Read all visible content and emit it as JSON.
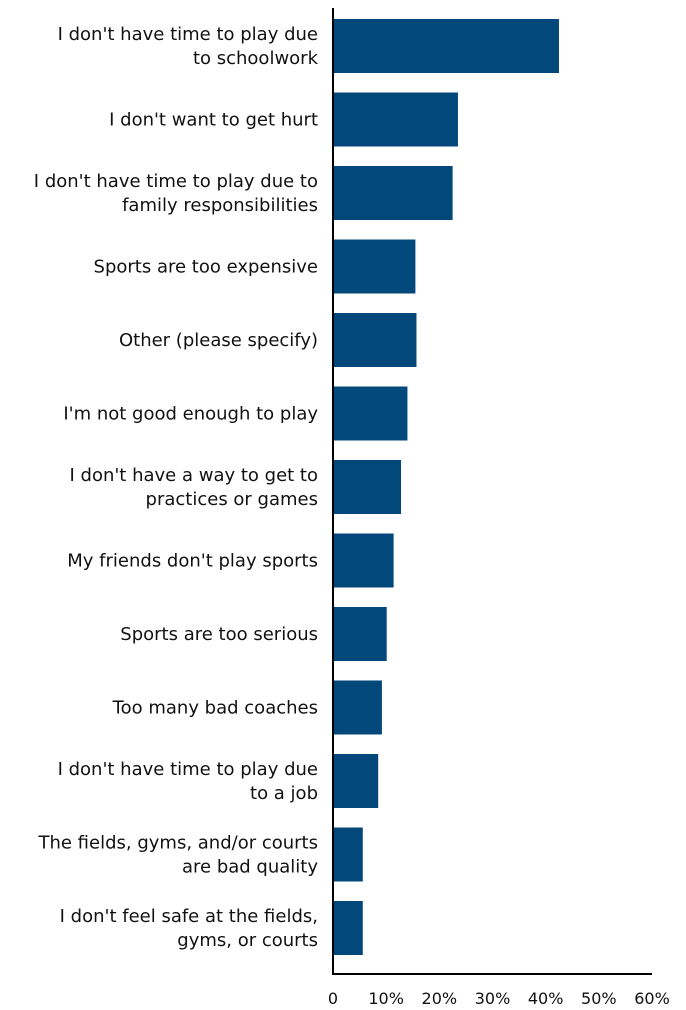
{
  "chart_data": {
    "type": "bar",
    "orientation": "horizontal",
    "categories": [
      [
        "I don't have time to play due",
        "to schoolwork"
      ],
      [
        "I don't want to get hurt"
      ],
      [
        "I don't have time to play due to",
        "family responsibilities"
      ],
      [
        "Sports are too expensive"
      ],
      [
        "Other (please specify)"
      ],
      [
        "I'm not good enough to play"
      ],
      [
        "I don't have a way to get to",
        "practices or games"
      ],
      [
        "My friends don't play sports"
      ],
      [
        "Sports are too serious"
      ],
      [
        "Too many bad coaches"
      ],
      [
        "I don't have time to play due",
        "to a job"
      ],
      [
        "The fields, gyms, and/or courts",
        "are bad quality"
      ],
      [
        "I don't feel safe at the fields,",
        "gyms, or courts"
      ]
    ],
    "values": [
      42.5,
      23.5,
      22.5,
      15.5,
      15.7,
      14,
      12.8,
      11.4,
      10.1,
      9.2,
      8.5,
      5.6,
      5.6
    ],
    "xlim": [
      0,
      60
    ],
    "xticks": [
      0,
      10,
      20,
      30,
      40,
      50,
      60
    ],
    "xtick_labels": [
      "0",
      "10%",
      "20%",
      "30%",
      "40%",
      "50%",
      "60%"
    ],
    "title": "",
    "xlabel": "",
    "ylabel": "",
    "grid": false,
    "bar_color": "#03487a",
    "axis_color": "#000000"
  }
}
